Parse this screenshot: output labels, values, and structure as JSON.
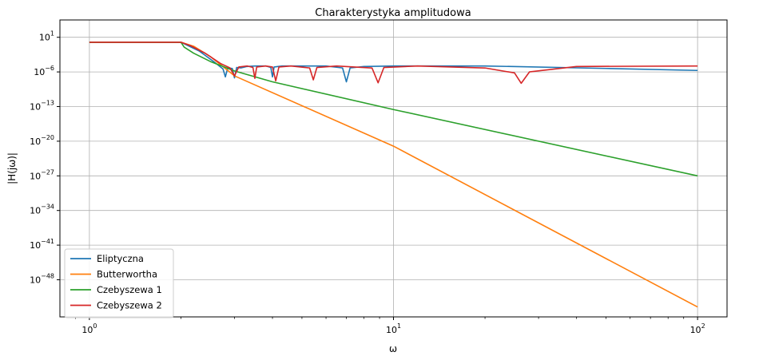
{
  "chart_data": {
    "type": "line",
    "title": "Charakterystyka amplitudowa",
    "xlabel": "ω",
    "ylabel": "|H(jω)|",
    "xscale": "log",
    "yscale": "log",
    "xlim": [
      0.8,
      125
    ],
    "ylim_log10": [
      -55.5,
      4.5
    ],
    "x_ticks": [
      {
        "base": "10",
        "exp": "0",
        "value": 1
      },
      {
        "base": "10",
        "exp": "1",
        "value": 10
      },
      {
        "base": "10",
        "exp": "2",
        "value": 100
      }
    ],
    "y_ticks": [
      {
        "base": "10",
        "exp": "1",
        "log": 1
      },
      {
        "base": "10",
        "exp": "−6",
        "log": -6
      },
      {
        "base": "10",
        "exp": "−13",
        "log": -13
      },
      {
        "base": "10",
        "exp": "−20",
        "log": -20
      },
      {
        "base": "10",
        "exp": "−27",
        "log": -27
      },
      {
        "base": "10",
        "exp": "−34",
        "log": -34
      },
      {
        "base": "10",
        "exp": "−41",
        "log": -41
      },
      {
        "base": "10",
        "exp": "−48",
        "log": -48
      }
    ],
    "grid": true,
    "legend_position": "lower-left",
    "series": [
      {
        "name": "Eliptyczna",
        "color": "#1f77b4",
        "points_log10": [
          [
            1,
            0
          ],
          [
            2,
            0
          ],
          [
            2.3,
            -1.8
          ],
          [
            2.6,
            -4.2
          ],
          [
            2.75,
            -5.4
          ],
          [
            2.8,
            -7
          ],
          [
            2.85,
            -5.2
          ],
          [
            2.95,
            -5.3
          ],
          [
            3.0,
            -7.2
          ],
          [
            3.05,
            -5.1
          ],
          [
            3.15,
            -5.2
          ],
          [
            3.3,
            -4.9
          ],
          [
            3.5,
            -4.8
          ],
          [
            3.8,
            -4.8
          ],
          [
            3.95,
            -5.1
          ],
          [
            4.0,
            -7.0
          ],
          [
            4.05,
            -5.0
          ],
          [
            4.3,
            -4.8
          ],
          [
            5.0,
            -4.8
          ],
          [
            6.0,
            -4.8
          ],
          [
            6.8,
            -5.2
          ],
          [
            7.0,
            -8.0
          ],
          [
            7.2,
            -5.2
          ],
          [
            8.0,
            -4.9
          ],
          [
            10,
            -4.8
          ],
          [
            20,
            -4.8
          ],
          [
            50,
            -5.3
          ],
          [
            100,
            -5.7
          ]
        ]
      },
      {
        "name": "Butterwortha",
        "color": "#ff7f0e",
        "points_log10": [
          [
            1,
            0
          ],
          [
            2,
            0
          ],
          [
            2.2,
            -0.8
          ],
          [
            2.5,
            -2.9
          ],
          [
            3.0,
            -6.8
          ],
          [
            10,
            -21.0
          ],
          [
            100,
            -53.5
          ]
        ]
      },
      {
        "name": "Czebyszewa 1",
        "color": "#2ca02c",
        "points_log10": [
          [
            1,
            0
          ],
          [
            2,
            0
          ],
          [
            2.05,
            -1.0
          ],
          [
            2.2,
            -2.2
          ],
          [
            2.5,
            -3.9
          ],
          [
            3.0,
            -5.8
          ],
          [
            4.0,
            -8.0
          ],
          [
            10,
            -13.6
          ],
          [
            100,
            -27.0
          ]
        ]
      },
      {
        "name": "Czebyszewa 2",
        "color": "#d62728",
        "points_log10": [
          [
            1,
            0
          ],
          [
            2,
            0
          ],
          [
            2.15,
            -0.7
          ],
          [
            2.4,
            -2.2
          ],
          [
            2.7,
            -4.3
          ],
          [
            2.9,
            -5.2
          ],
          [
            3.0,
            -6.8
          ],
          [
            3.1,
            -5.0
          ],
          [
            3.3,
            -4.8
          ],
          [
            3.45,
            -5.1
          ],
          [
            3.5,
            -7.3
          ],
          [
            3.55,
            -5.0
          ],
          [
            3.8,
            -4.8
          ],
          [
            4.0,
            -5.0
          ],
          [
            4.1,
            -7.8
          ],
          [
            4.2,
            -5.0
          ],
          [
            4.6,
            -4.8
          ],
          [
            5.3,
            -5.2
          ],
          [
            5.45,
            -7.6
          ],
          [
            5.6,
            -5.1
          ],
          [
            6.5,
            -4.8
          ],
          [
            8.5,
            -5.2
          ],
          [
            8.9,
            -8.2
          ],
          [
            9.3,
            -5.1
          ],
          [
            12,
            -4.8
          ],
          [
            20,
            -5.2
          ],
          [
            25,
            -6.2
          ],
          [
            26.3,
            -8.3
          ],
          [
            28,
            -6.0
          ],
          [
            40,
            -4.9
          ],
          [
            100,
            -4.8
          ]
        ]
      }
    ]
  }
}
